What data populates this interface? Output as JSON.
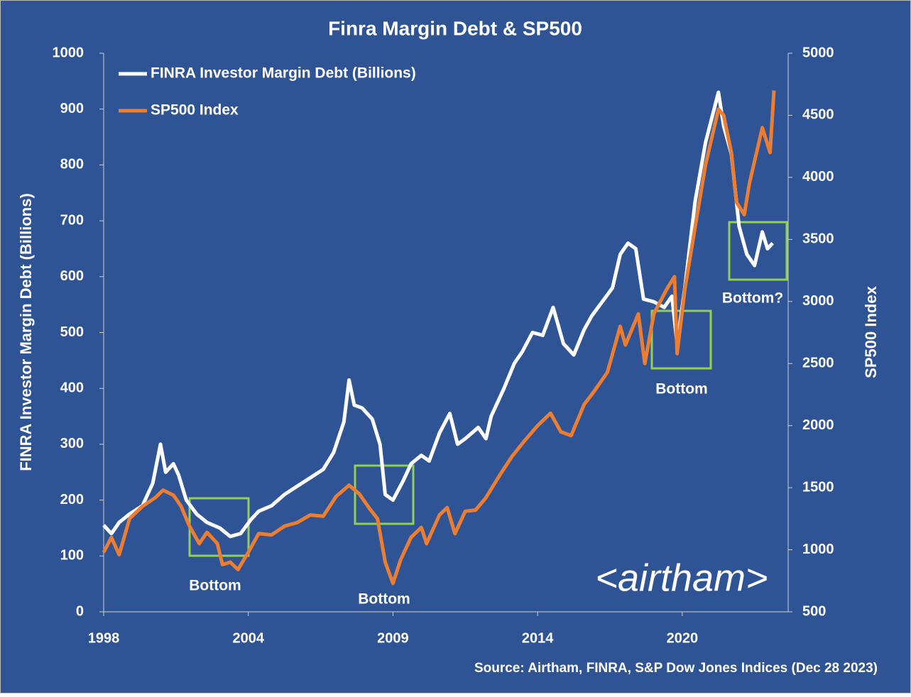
{
  "chart_data": {
    "type": "line",
    "title": "Finra Margin Debt & SP500",
    "ylabel": "FINRA Investor Margin Debt (Billions)",
    "y2label": "SP500 Index",
    "source": "Source: Airtham, FINRA, S&P Dow Jones Indices (Dec 28 2023)",
    "watermark": "<airtham>",
    "annotations": [
      "Bottom",
      "Bottom",
      "Bottom",
      "Bottom?"
    ],
    "legend": "top-left",
    "xlim": [
      1998,
      2024.5
    ],
    "xticks": [
      1998,
      {
        "value": 2003.6,
        "label": "2004"
      },
      {
        "value": 2009.2,
        "label": "2009"
      },
      {
        "value": 2014.8,
        "label": "2014"
      },
      {
        "value": 2020.4,
        "label": "2020"
      }
    ],
    "ylim": [
      0,
      1000
    ],
    "yticks": [
      0,
      100,
      200,
      300,
      400,
      500,
      600,
      700,
      800,
      900,
      1000
    ],
    "y2lim": [
      500,
      5000
    ],
    "y2ticks": [
      500,
      1000,
      1500,
      2000,
      2500,
      3000,
      3500,
      4000,
      4500,
      5000
    ],
    "series": [
      {
        "name": "FINRA Investor Margin Debt (Billions)",
        "color": "#ffffff",
        "x": [
          1998.0,
          1998.3,
          1998.6,
          1999.0,
          1999.5,
          1999.9,
          2000.2,
          2000.4,
          2000.7,
          2000.9,
          2001.2,
          2001.6,
          2002.0,
          2002.5,
          2002.9,
          2003.3,
          2003.7,
          2004.0,
          2004.5,
          2005.0,
          2005.5,
          2006.0,
          2006.5,
          2006.9,
          2007.3,
          2007.5,
          2007.7,
          2008.0,
          2008.4,
          2008.7,
          2008.9,
          2009.2,
          2009.6,
          2009.9,
          2010.3,
          2010.6,
          2011.0,
          2011.4,
          2011.7,
          2012.0,
          2012.5,
          2012.8,
          2013.0,
          2013.5,
          2013.9,
          2014.2,
          2014.6,
          2015.0,
          2015.4,
          2015.8,
          2016.2,
          2016.6,
          2016.9,
          2017.3,
          2017.7,
          2018.0,
          2018.3,
          2018.6,
          2018.9,
          2019.3,
          2019.7,
          2020.0,
          2020.2,
          2020.5,
          2020.9,
          2021.3,
          2021.8,
          2022.0,
          2022.3,
          2022.6,
          2022.9,
          2023.2,
          2023.5,
          2023.7,
          2023.9
        ],
        "values": [
          155,
          140,
          160,
          175,
          190,
          230,
          300,
          250,
          265,
          245,
          200,
          175,
          160,
          150,
          135,
          140,
          165,
          180,
          190,
          210,
          225,
          240,
          255,
          285,
          340,
          415,
          370,
          365,
          345,
          300,
          210,
          200,
          235,
          265,
          280,
          270,
          320,
          355,
          300,
          310,
          330,
          310,
          350,
          400,
          445,
          465,
          500,
          495,
          545,
          480,
          460,
          505,
          530,
          555,
          580,
          640,
          660,
          650,
          560,
          555,
          545,
          565,
          480,
          580,
          735,
          840,
          930,
          870,
          820,
          690,
          640,
          620,
          680,
          650,
          660
        ]
      },
      {
        "name": "SP500 Index",
        "color": "#ed7d31",
        "axis": "y2",
        "x": [
          1998.0,
          1998.3,
          1998.6,
          1999.0,
          1999.5,
          2000.0,
          2000.3,
          2000.7,
          2001.0,
          2001.3,
          2001.7,
          2002.0,
          2002.4,
          2002.6,
          2002.9,
          2003.2,
          2003.6,
          2004.0,
          2004.5,
          2005.0,
          2005.5,
          2006.0,
          2006.5,
          2007.0,
          2007.5,
          2007.9,
          2008.3,
          2008.6,
          2008.9,
          2009.2,
          2009.5,
          2009.9,
          2010.3,
          2010.5,
          2011.0,
          2011.3,
          2011.6,
          2012.0,
          2012.4,
          2012.8,
          2013.3,
          2013.8,
          2014.3,
          2014.8,
          2015.3,
          2015.7,
          2016.1,
          2016.6,
          2017.0,
          2017.5,
          2018.0,
          2018.2,
          2018.7,
          2018.95,
          2019.3,
          2019.8,
          2020.1,
          2020.2,
          2020.5,
          2020.9,
          2021.3,
          2021.8,
          2022.0,
          2022.3,
          2022.5,
          2022.8,
          2023.0,
          2023.5,
          2023.8,
          2023.95
        ],
        "values": [
          980,
          1100,
          960,
          1250,
          1350,
          1420,
          1480,
          1440,
          1350,
          1200,
          1050,
          1140,
          1050,
          880,
          900,
          840,
          980,
          1130,
          1120,
          1190,
          1220,
          1280,
          1270,
          1430,
          1520,
          1450,
          1330,
          1250,
          900,
          730,
          920,
          1100,
          1180,
          1050,
          1280,
          1340,
          1130,
          1310,
          1320,
          1420,
          1590,
          1750,
          1880,
          2000,
          2100,
          1950,
          1920,
          2170,
          2280,
          2430,
          2800,
          2650,
          2900,
          2500,
          2900,
          3100,
          3200,
          2580,
          3100,
          3600,
          4100,
          4550,
          4500,
          4200,
          3800,
          3700,
          3950,
          4400,
          4200,
          4700
        ]
      }
    ]
  }
}
